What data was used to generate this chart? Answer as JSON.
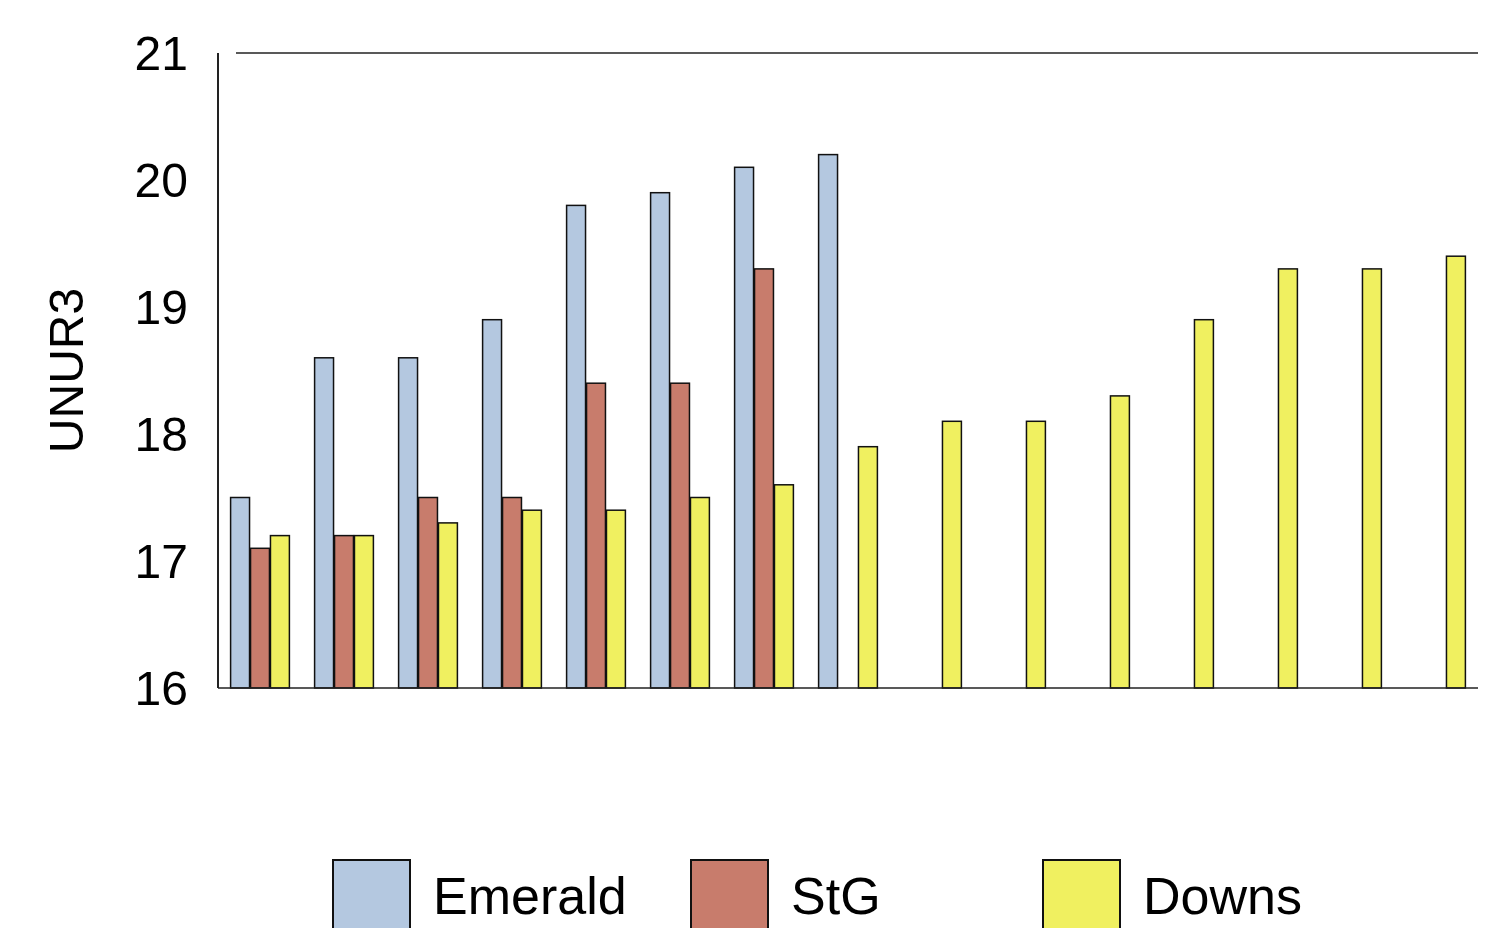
{
  "chart_data": {
    "type": "bar",
    "ylabel": "UNUR3",
    "categories": [
      null,
      null,
      null,
      null,
      null,
      null,
      null,
      null,
      null,
      null,
      null,
      null,
      null,
      null,
      null
    ],
    "series": [
      {
        "name": "Emerald",
        "color": "#b4c8e0",
        "values": [
          17.5,
          18.6,
          18.6,
          18.9,
          19.8,
          19.9,
          20.1,
          20.2,
          null,
          null,
          null,
          null,
          null,
          null,
          null
        ]
      },
      {
        "name": "StG",
        "color": "#c87c6c",
        "values": [
          17.1,
          17.2,
          17.5,
          17.5,
          18.4,
          18.4,
          19.3,
          null,
          null,
          null,
          null,
          null,
          null,
          null,
          null
        ]
      },
      {
        "name": "Downs",
        "color": "#f0f060",
        "values": [
          17.2,
          17.2,
          17.3,
          17.4,
          17.4,
          17.5,
          17.6,
          17.9,
          18.1,
          18.1,
          18.3,
          18.9,
          19.3,
          19.3,
          19.4
        ]
      }
    ],
    "ylim": [
      16,
      21
    ],
    "yticks": [
      16,
      17,
      18,
      19,
      20,
      21
    ],
    "grid": false,
    "legend": "bottom"
  }
}
